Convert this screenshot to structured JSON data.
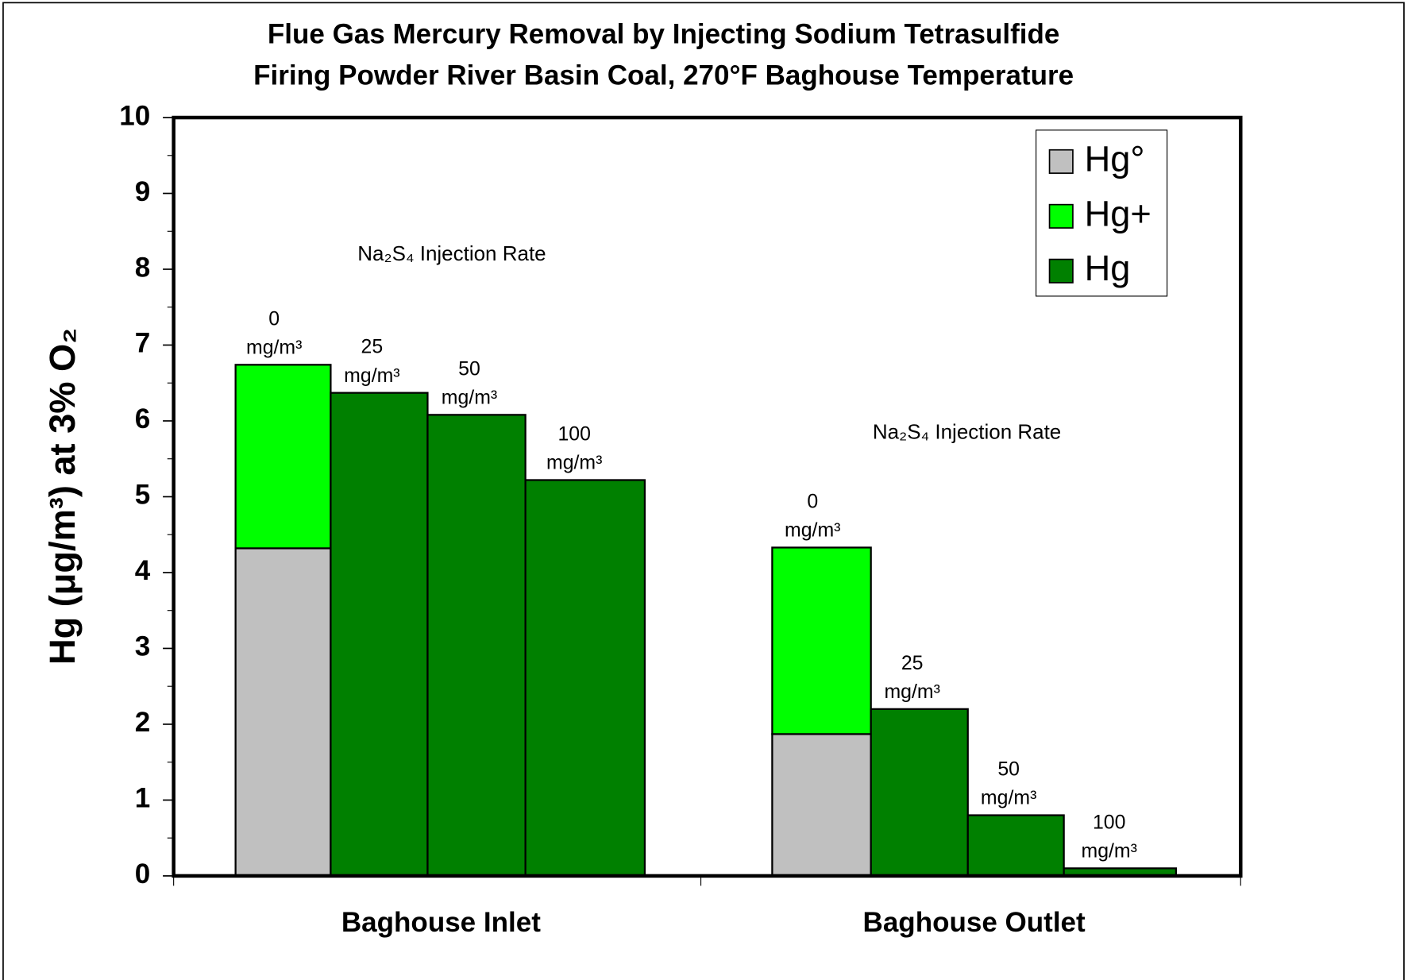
{
  "chart_data": {
    "type": "bar",
    "stacked": true,
    "title": "Flue Gas Mercury Removal by Injecting Sodium Tetrasulfide",
    "subtitle": "Firing Powder River Basin Coal, 270°F Baghouse Temperature",
    "y_label": "Hg (μg/m³) at 3% O₂",
    "groups": [
      "Baghouse Inlet",
      "Baghouse Outlet"
    ],
    "annotations": [
      "Na₂S₄ Injection Rate",
      "Na₂S₄ Injection Rate"
    ],
    "categories": [
      "0",
      "25",
      "50",
      "100",
      "0",
      "25",
      "50",
      "100"
    ],
    "category_unit": "mg/m³",
    "series": [
      {
        "name": "Hg°",
        "color": "#c0c0c0",
        "values": [
          4.32,
          null,
          null,
          null,
          1.87,
          null,
          null,
          null
        ]
      },
      {
        "name": "Hg+",
        "color": "#00ff00",
        "values": [
          2.42,
          null,
          null,
          null,
          2.46,
          null,
          null,
          null
        ]
      },
      {
        "name": "Hg",
        "color": "#008000",
        "values": [
          null,
          6.37,
          6.08,
          5.22,
          null,
          2.2,
          0.8,
          0.1
        ]
      }
    ],
    "ylim": [
      0,
      10
    ],
    "yticks": [
      0,
      1,
      2,
      3,
      4,
      5,
      6,
      7,
      8,
      9,
      10
    ],
    "legend": "top-right"
  }
}
